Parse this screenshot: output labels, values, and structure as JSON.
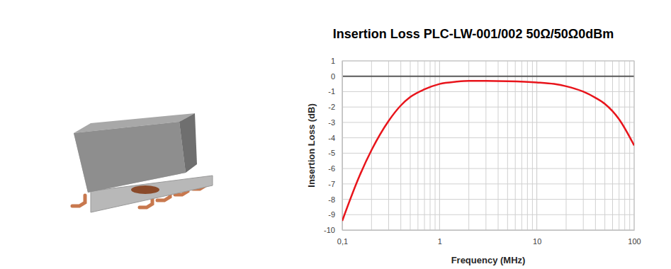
{
  "chart_data": {
    "type": "line",
    "title": "Insertion Loss PLC-LW-001/002 50Ω/50Ω0dBm",
    "x_label": "Frequency (MHz)",
    "y_label": "Insertion Loss (dB)",
    "x": [
      0.1,
      0.15,
      0.2,
      0.3,
      0.4,
      0.5,
      0.7,
      1,
      1.5,
      2,
      3,
      5,
      10,
      15,
      20,
      30,
      40,
      50,
      70,
      100
    ],
    "values": [
      -9.4,
      -6.5,
      -4.8,
      -2.9,
      -1.9,
      -1.35,
      -0.85,
      -0.5,
      -0.35,
      -0.3,
      -0.3,
      -0.32,
      -0.4,
      -0.5,
      -0.65,
      -1.0,
      -1.4,
      -1.8,
      -2.8,
      -4.5
    ],
    "color": "#e8141b",
    "xlim": [
      0.1,
      100
    ],
    "ylim": [
      -10,
      1
    ],
    "xticks": [
      {
        "value": 0.1,
        "label": "0,1"
      },
      1,
      10,
      100
    ],
    "yticks": [
      1,
      0,
      -1,
      -2,
      -3,
      -4,
      -5,
      -6,
      -7,
      -8,
      -9,
      -10
    ],
    "log": "x",
    "grid": true
  }
}
